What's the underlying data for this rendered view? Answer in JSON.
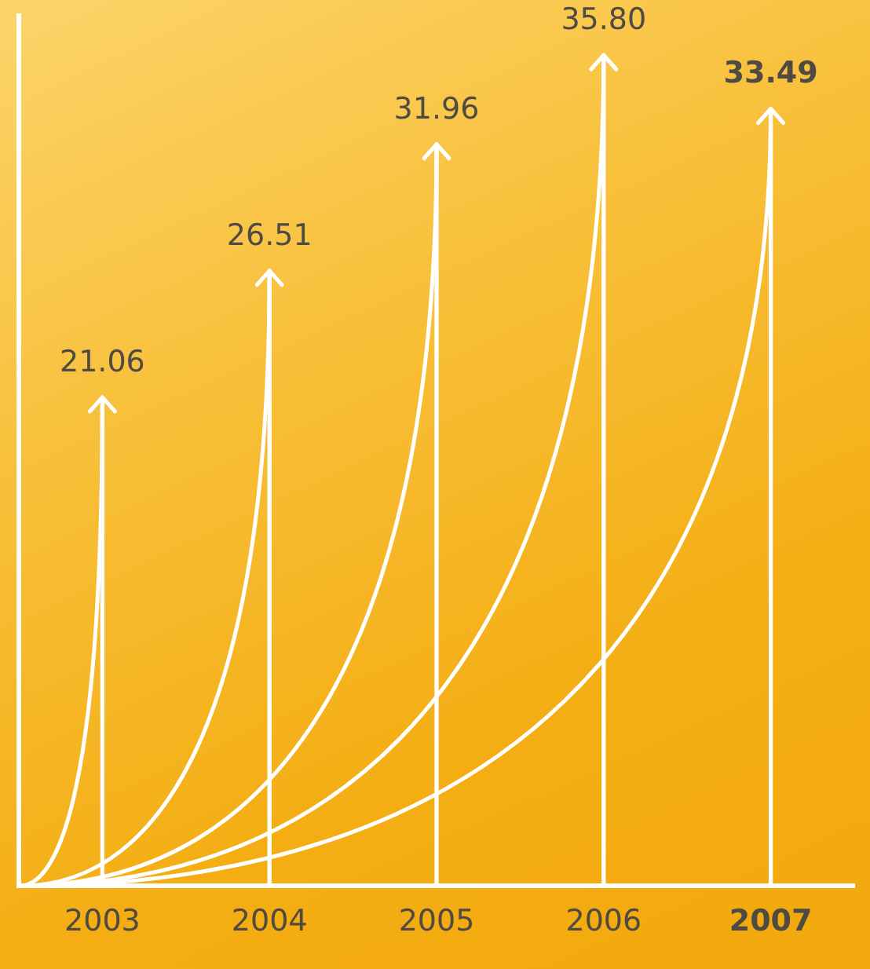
{
  "chart_data": {
    "type": "bar",
    "categories": [
      "2003",
      "2004",
      "2005",
      "2006",
      "2007"
    ],
    "values": [
      21.06,
      26.51,
      31.96,
      35.8,
      33.49
    ],
    "color": "#ffffff",
    "ylim": [
      0,
      37.5
    ],
    "value_labels": [
      "21.06",
      "26.51",
      "31.96",
      "35.80",
      "33.49"
    ],
    "tick_labels": "x",
    "grid": false,
    "legend": false
  }
}
